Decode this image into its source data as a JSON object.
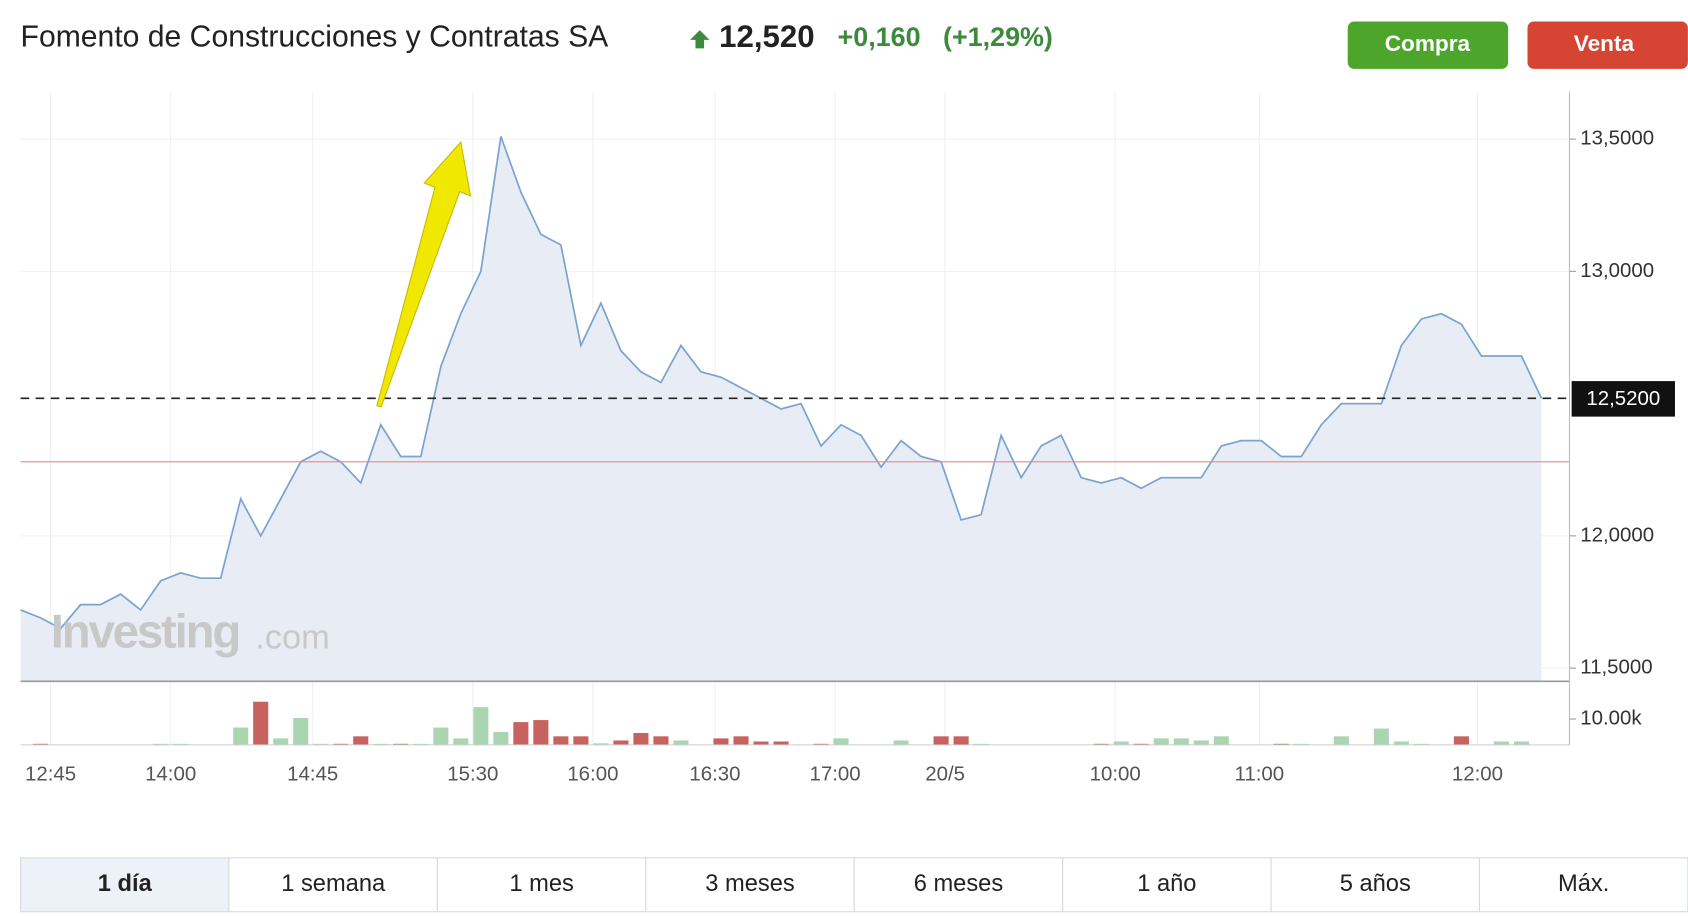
{
  "header": {
    "title": "Fomento de Construcciones y Contratas SA",
    "price": "12,520",
    "change": "+0,160",
    "change_percent": "(+1,29%)"
  },
  "buttons": {
    "buy": "Compra",
    "sell": "Venta"
  },
  "watermark": {
    "main": "Investing",
    "suffix": ".com"
  },
  "tabs": [
    "1 día",
    "1 semana",
    "1 mes",
    "3 meses",
    "6 meses",
    "1 año",
    "5 años",
    "Máx."
  ],
  "chart_data": {
    "type": "line",
    "categories": [
      null,
      null,
      null,
      null,
      null,
      null,
      null,
      null,
      null,
      null,
      null,
      null,
      null,
      null,
      null,
      null,
      null,
      null,
      null,
      null,
      null,
      null,
      null,
      null,
      null,
      null,
      null,
      null,
      null,
      null,
      null,
      null,
      null,
      null,
      null,
      null,
      null,
      null,
      null,
      null,
      null,
      null,
      null,
      null,
      null,
      null,
      null,
      null,
      null,
      null,
      null,
      null,
      null,
      null,
      null,
      null,
      null,
      null,
      null,
      null,
      null,
      null,
      null,
      null,
      null,
      null,
      null,
      null,
      null,
      null,
      null,
      null,
      null,
      null,
      null,
      null,
      null
    ],
    "series": [
      {
        "color": "#7ba3d0",
        "area_color": "#e8edf5",
        "values": [
          11.72,
          11.69,
          11.65,
          11.74,
          11.74,
          11.78,
          11.72,
          11.83,
          11.86,
          11.84,
          11.84,
          12.14,
          12.0,
          12.14,
          12.28,
          12.32,
          12.28,
          12.2,
          12.42,
          12.3,
          12.3,
          12.64,
          12.84,
          13.0,
          13.51,
          13.3,
          13.14,
          13.1,
          12.72,
          12.88,
          12.7,
          12.62,
          12.58,
          12.72,
          12.62,
          12.6,
          12.56,
          12.52,
          12.48,
          12.5,
          12.34,
          12.42,
          12.38,
          12.26,
          12.36,
          12.3,
          12.28,
          12.06,
          12.08,
          12.38,
          12.22,
          12.34,
          12.38,
          12.22,
          12.2,
          12.22,
          12.18,
          12.22,
          12.22,
          12.22,
          12.34,
          12.36,
          12.36,
          12.3,
          12.3,
          12.42,
          12.5,
          12.5,
          12.5,
          12.72,
          12.82,
          12.84,
          12.8,
          12.68,
          12.68,
          12.68,
          12.52
        ]
      },
      {
        "type": "bar",
        "axis": "y2",
        "values": [
          null,
          400,
          null,
          null,
          null,
          null,
          null,
          400,
          400,
          null,
          null,
          6700,
          16700,
          2500,
          10400,
          400,
          400,
          3300,
          400,
          400,
          400,
          6700,
          2500,
          14600,
          5000,
          8800,
          9600,
          3300,
          3300,
          600,
          1700,
          4600,
          3300,
          1700,
          null,
          2500,
          3300,
          1300,
          1300,
          null,
          400,
          2500,
          null,
          null,
          1700,
          null,
          3300,
          3300,
          400,
          null,
          null,
          null,
          null,
          null,
          400,
          1300,
          400,
          2500,
          2500,
          1700,
          3300,
          null,
          null,
          400,
          400,
          null,
          3300,
          null,
          6300,
          1300,
          400,
          null,
          3300,
          null,
          1300,
          1300,
          null
        ],
        "colors": [
          null,
          "#c8625f",
          null,
          null,
          null,
          null,
          null,
          "#a9d6b1",
          "#a9d6b1",
          null,
          null,
          "#a9d6b1",
          "#c8625f",
          "#a9d6b1",
          "#a9d6b1",
          "#a9d6b1",
          "#c8625f",
          "#c8625f",
          "#a9d6b1",
          "#c8625f",
          "#a9d6b1",
          "#a9d6b1",
          "#a9d6b1",
          "#a9d6b1",
          "#a9d6b1",
          "#c8625f",
          "#c8625f",
          "#c8625f",
          "#c8625f",
          "#a9d6b1",
          "#c8625f",
          "#c8625f",
          "#c8625f",
          "#a9d6b1",
          null,
          "#c8625f",
          "#c8625f",
          "#c8625f",
          "#c8625f",
          null,
          "#c8625f",
          "#a9d6b1",
          null,
          null,
          "#a9d6b1",
          null,
          "#c8625f",
          "#c8625f",
          "#a9d6b1",
          null,
          null,
          null,
          null,
          null,
          "#c8625f",
          "#a9d6b1",
          "#c8625f",
          "#a9d6b1",
          "#a9d6b1",
          "#a9d6b1",
          "#a9d6b1",
          null,
          null,
          "#c8625f",
          "#a9d6b1",
          null,
          "#a9d6b1",
          null,
          "#a9d6b1",
          "#a9d6b1",
          "#a9d6b1",
          null,
          "#c8625f",
          null,
          "#a9d6b1",
          "#a9d6b1",
          null
        ]
      }
    ],
    "xlim": [
      0,
      77.4
    ],
    "xticks": [
      {
        "value": 1.5,
        "label": "12:45"
      },
      {
        "value": 7.5,
        "label": "14:00"
      },
      {
        "value": 14.6,
        "label": "14:45"
      },
      {
        "value": 22.6,
        "label": "15:30"
      },
      {
        "value": 28.6,
        "label": "16:00"
      },
      {
        "value": 34.7,
        "label": "16:30"
      },
      {
        "value": 40.7,
        "label": "17:00"
      },
      {
        "value": 46.2,
        "label": "20/5"
      },
      {
        "value": 54.7,
        "label": "10:00"
      },
      {
        "value": 61.9,
        "label": "11:00"
      },
      {
        "value": 72.8,
        "label": "12:00"
      }
    ],
    "ylim": [
      11.45,
      13.68
    ],
    "yticks": [
      {
        "value": 11.5,
        "label": "11,5000"
      },
      {
        "value": 12,
        "label": "12,0000"
      },
      {
        "value": 13,
        "label": "13,0000"
      },
      {
        "value": 13.5,
        "label": "13,5000"
      }
    ],
    "y2lim": [
      0,
      23750
    ],
    "y2ticks": [
      {
        "value": 10000,
        "label": "10.00k"
      }
    ],
    "current_price": {
      "value": 12.52,
      "label": "12,5200"
    },
    "reference_line": {
      "value": 12.28,
      "color": "#e88a8a"
    },
    "grid": true
  }
}
